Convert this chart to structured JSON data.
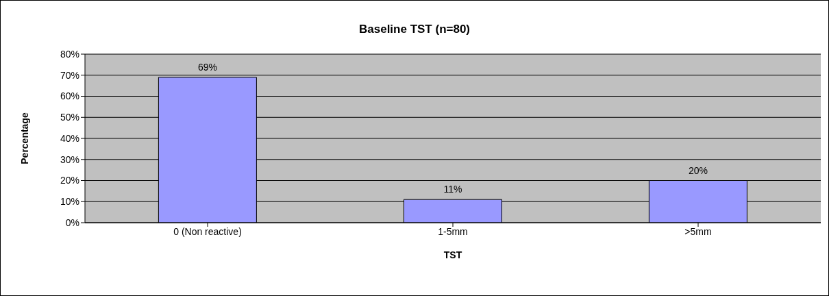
{
  "chart_data": {
    "type": "bar",
    "title": "Baseline TST (n=80)",
    "xlabel": "TST",
    "ylabel": "Percentage",
    "categories": [
      "0 (Non reactive)",
      "1-5mm",
      ">5mm"
    ],
    "values": [
      69,
      11,
      20
    ],
    "value_labels": [
      "69%",
      "11%",
      "20%"
    ],
    "color": "#9999ff",
    "ylim": [
      0,
      80
    ],
    "yticks": [
      {
        "value": 0,
        "label": "0%"
      },
      {
        "value": 10,
        "label": "10%"
      },
      {
        "value": 20,
        "label": "20%"
      },
      {
        "value": 30,
        "label": "30%"
      },
      {
        "value": 40,
        "label": "40%"
      },
      {
        "value": 50,
        "label": "50%"
      },
      {
        "value": 60,
        "label": "60%"
      },
      {
        "value": 70,
        "label": "70%"
      },
      {
        "value": 80,
        "label": "80%"
      }
    ],
    "grid": "y"
  }
}
